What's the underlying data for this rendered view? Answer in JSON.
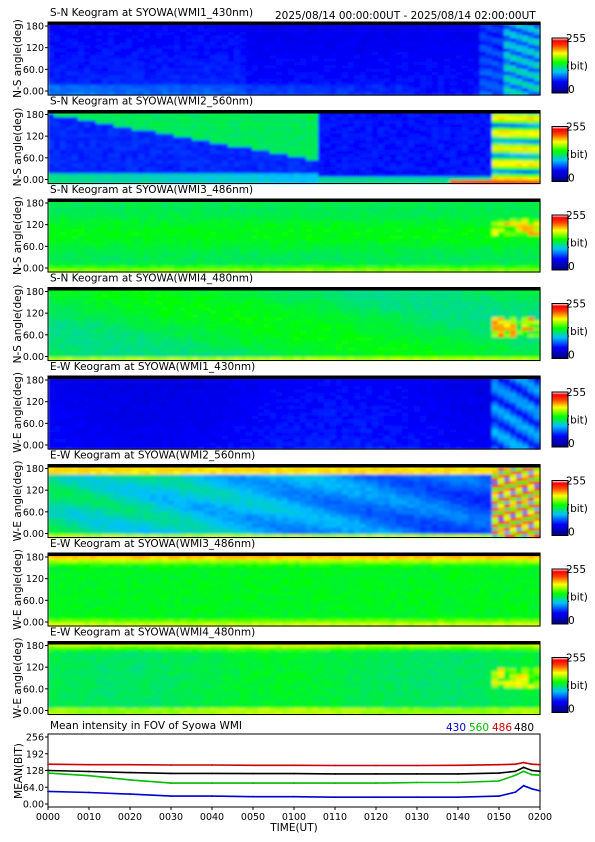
{
  "header": {
    "time_range": "2025/08/14 00:00:00UT - 2025/08/14 02:00:00UT"
  },
  "keograms": [
    {
      "title": "S-N Keogram at SYOWA(WMI1_430nm)",
      "ylabel": "N-S angle(deg)",
      "profile": "sn430"
    },
    {
      "title": "S-N Keogram at SYOWA(WMI2_560nm)",
      "ylabel": "N-S angle(deg)",
      "profile": "sn560"
    },
    {
      "title": "S-N Keogram at SYOWA(WMI3_486nm)",
      "ylabel": "N-S angle(deg)",
      "profile": "sn486"
    },
    {
      "title": "S-N Keogram at SYOWA(WMI4_480nm)",
      "ylabel": "N-S angle(deg)",
      "profile": "sn480"
    },
    {
      "title": "E-W Keogram at SYOWA(WMI1_430nm)",
      "ylabel": "W-E angle(deg)",
      "profile": "ew430"
    },
    {
      "title": "E-W Keogram at SYOWA(WMI2_560nm)",
      "ylabel": "W-E angle(deg)",
      "profile": "ew560"
    },
    {
      "title": "E-W Keogram at SYOWA(WMI3_486nm)",
      "ylabel": "W-E angle(deg)",
      "profile": "ew486"
    },
    {
      "title": "E-W Keogram at SYOWA(WMI4_480nm)",
      "ylabel": "W-E angle(deg)",
      "profile": "ew480"
    }
  ],
  "keogram_yticks": [
    "180",
    "120",
    "60.0",
    "0.00"
  ],
  "colorbar": {
    "max_label": "255",
    "unit_label": "(bit)",
    "min_label": "0"
  },
  "mean_panel": {
    "title": "Mean intensity in FOV of Syowa WMI",
    "ylabel": "MEAN(BIT)",
    "xlabel": "TIME(UT)",
    "legend": [
      {
        "label": "430",
        "color": "#0000cc"
      },
      {
        "label": "560",
        "color": "#00bb00"
      },
      {
        "label": "486",
        "color": "#cc0000"
      },
      {
        "label": "480",
        "color": "#000000"
      }
    ],
    "yticks": [
      "256",
      "192",
      "128",
      "64.0",
      "0.00"
    ],
    "xticks": [
      "0000",
      "0010",
      "0020",
      "0030",
      "0040",
      "0050",
      "0100",
      "0110",
      "0120",
      "0130",
      "0140",
      "0150",
      "0200"
    ]
  },
  "chart_data": {
    "type": "line",
    "title": "Mean intensity in FOV of Syowa WMI",
    "xlabel": "TIME(UT)",
    "ylabel": "MEAN(BIT)",
    "x": [
      0,
      10,
      20,
      30,
      40,
      50,
      60,
      70,
      80,
      90,
      100,
      110,
      114,
      116,
      118,
      120
    ],
    "ylim": [
      0,
      256
    ],
    "series": [
      {
        "name": "430",
        "color": "#0000cc",
        "values": [
          48,
          44,
          38,
          30,
          30,
          28,
          28,
          26,
          26,
          26,
          26,
          30,
          45,
          70,
          58,
          50
        ]
      },
      {
        "name": "560",
        "color": "#00bb00",
        "values": [
          118,
          108,
          92,
          80,
          80,
          80,
          80,
          80,
          80,
          82,
          82,
          88,
          110,
          125,
          112,
          110
        ]
      },
      {
        "name": "486",
        "color": "#cc0000",
        "values": [
          152,
          150,
          150,
          149,
          149,
          148,
          148,
          147,
          147,
          147,
          148,
          150,
          152,
          158,
          152,
          150
        ]
      },
      {
        "name": "480",
        "color": "#000000",
        "values": [
          128,
          124,
          120,
          117,
          117,
          116,
          116,
          115,
          115,
          115,
          115,
          118,
          125,
          140,
          128,
          125
        ]
      }
    ]
  },
  "colors": {
    "colormap": [
      "#00008b",
      "#0000ff",
      "#00c8ff",
      "#00ff00",
      "#ffff00",
      "#ff0000",
      "#ffffff"
    ]
  }
}
